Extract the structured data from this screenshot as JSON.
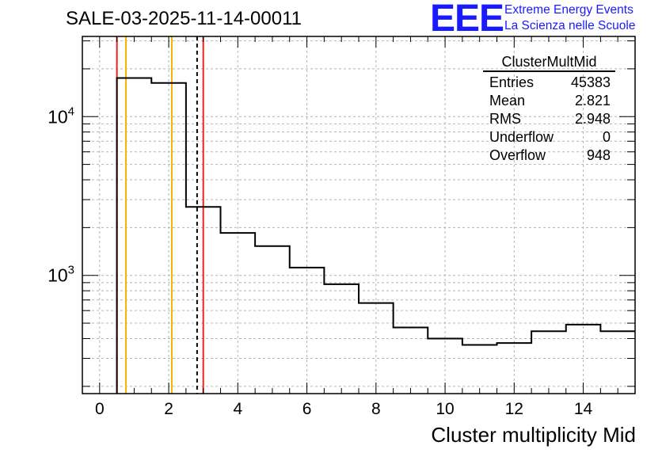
{
  "header": {
    "run_title": "SALE-03-2025-11-14-00011",
    "logo": "EEE",
    "org_line1": "Extreme Energy Events",
    "org_line2": "La Scienza nelle Scuole"
  },
  "stats": {
    "name": "ClusterMultMid",
    "rows": [
      {
        "label": "Entries",
        "value": "45383"
      },
      {
        "label": "Mean",
        "value": "2.821"
      },
      {
        "label": "RMS",
        "value": "2.948"
      },
      {
        "label": "Underflow",
        "value": "0"
      },
      {
        "label": "Overflow",
        "value": "948"
      }
    ]
  },
  "chart_data": {
    "type": "histogram",
    "title": "SALE-03-2025-11-14-00011",
    "xlabel": "Cluster multiplicity Mid",
    "ylabel": "",
    "yscale": "log",
    "xlim": [
      -0.5,
      15.5
    ],
    "ylim": [
      180,
      32000
    ],
    "x_ticks": [
      0,
      2,
      4,
      6,
      8,
      10,
      12,
      14
    ],
    "y_tick_labels": [
      {
        "base": "10",
        "exp": "3",
        "value": 1000
      },
      {
        "base": "10",
        "exp": "4",
        "value": 10000
      }
    ],
    "grid": true,
    "bins": [
      {
        "low": 0.5,
        "high": 1.5,
        "count": 17500
      },
      {
        "low": 1.5,
        "high": 2.5,
        "count": 16300
      },
      {
        "low": 2.5,
        "high": 3.5,
        "count": 2700
      },
      {
        "low": 3.5,
        "high": 4.5,
        "count": 1850
      },
      {
        "low": 4.5,
        "high": 5.5,
        "count": 1530
      },
      {
        "low": 5.5,
        "high": 6.5,
        "count": 1120
      },
      {
        "low": 6.5,
        "high": 7.5,
        "count": 880
      },
      {
        "low": 7.5,
        "high": 8.5,
        "count": 670
      },
      {
        "low": 8.5,
        "high": 9.5,
        "count": 470
      },
      {
        "low": 9.5,
        "high": 10.5,
        "count": 400
      },
      {
        "low": 10.5,
        "high": 11.5,
        "count": 365
      },
      {
        "low": 11.5,
        "high": 12.5,
        "count": 375
      },
      {
        "low": 12.5,
        "high": 13.5,
        "count": 445
      },
      {
        "low": 13.5,
        "high": 14.5,
        "count": 490
      },
      {
        "low": 14.5,
        "high": 15.5,
        "count": 445
      }
    ],
    "vertical_lines": [
      {
        "name": "red-line-low",
        "x": 0.5,
        "color": "#e8241c",
        "dash": "solid"
      },
      {
        "name": "orange-line-low",
        "x": 0.76,
        "color": "#f5b400",
        "dash": "solid"
      },
      {
        "name": "orange-line-high",
        "x": 2.09,
        "color": "#f5b400",
        "dash": "solid"
      },
      {
        "name": "mean-line",
        "x": 2.821,
        "color": "#000000",
        "dash": "dashed"
      },
      {
        "name": "red-line-high",
        "x": 3.0,
        "color": "#e8241c",
        "dash": "solid"
      }
    ]
  }
}
